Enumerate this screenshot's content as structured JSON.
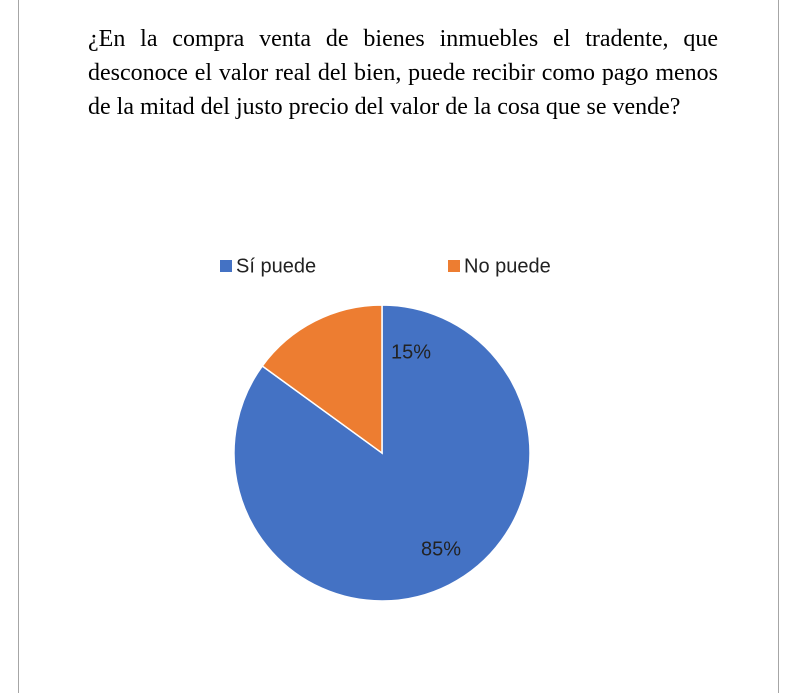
{
  "chart_data": {
    "type": "pie",
    "title": "¿En la compra venta de bienes inmuebles el tradente, que desconoce el valor real del bien, puede recibir como pago menos de la mitad del justo precio del valor de la cosa que se vende?",
    "categories": [
      "Sí puede",
      "No puede"
    ],
    "values": [
      85,
      15
    ],
    "value_labels": [
      "85%",
      "15%"
    ],
    "colors": [
      "#4472c4",
      "#ed7d31"
    ],
    "legend": "top"
  }
}
